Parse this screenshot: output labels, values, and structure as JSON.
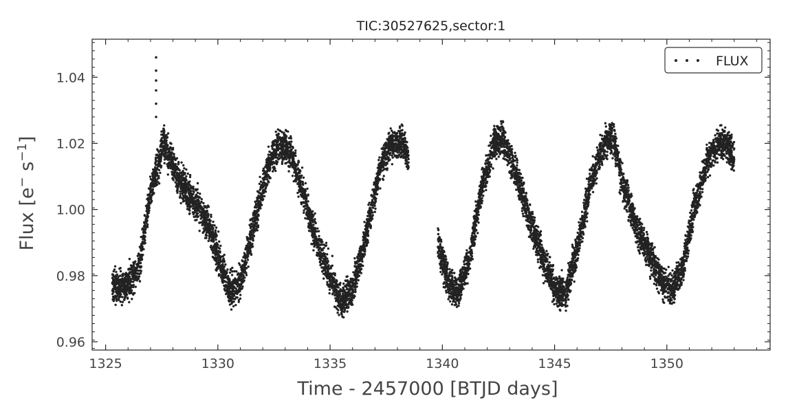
{
  "chart_data": {
    "type": "scatter",
    "title": "TIC:30527625,sector:1",
    "xlabel": "Time - 2457000 [BTJD days]",
    "ylabel_main": "Flux [e",
    "ylabel_sup1": "−",
    "ylabel_mid": " s",
    "ylabel_sup2": "−1",
    "ylabel_end": "]",
    "xlim": [
      1324.4,
      1354.6
    ],
    "ylim": [
      0.9575,
      1.0515
    ],
    "x_ticks": [
      1325,
      1330,
      1335,
      1340,
      1345,
      1350
    ],
    "y_ticks": [
      0.96,
      0.98,
      1.0,
      1.02,
      1.04
    ],
    "x_tick_labels": [
      "1325",
      "1330",
      "1335",
      "1340",
      "1345",
      "1350"
    ],
    "y_tick_labels": [
      "0.96",
      "0.98",
      "1.00",
      "1.02",
      "1.04"
    ],
    "legend": {
      "label": "FLUX",
      "position": "top-right"
    },
    "series": [
      {
        "name": "FLUX",
        "color": "#222222",
        "segments": [
          {
            "x": [
              1325.3,
              1325.6,
              1326.0,
              1326.5,
              1327.0,
              1327.6,
              1328.2,
              1328.9,
              1329.6,
              1330.3,
              1330.6,
              1331.0,
              1331.6,
              1332.2,
              1332.7,
              1333.2,
              1333.8,
              1334.4,
              1335.0,
              1335.5,
              1336.0,
              1336.6,
              1337.2,
              1337.7,
              1338.2,
              1338.5
            ],
            "y": [
              0.978,
              0.976,
              0.977,
              0.983,
              1.005,
              1.02,
              1.01,
              1.003,
              0.995,
              0.98,
              0.975,
              0.978,
              0.995,
              1.012,
              1.02,
              1.018,
              1.005,
              0.99,
              0.98,
              0.972,
              0.976,
              0.992,
              1.012,
              1.02,
              1.02,
              1.015
            ]
          },
          {
            "x": [
              1339.8,
              1340.3,
              1340.7,
              1341.2,
              1341.8,
              1342.3,
              1342.7,
              1343.3,
              1343.9,
              1344.5,
              1345.1,
              1345.5,
              1346.0,
              1346.6,
              1347.2,
              1347.6,
              1348.1,
              1348.7,
              1349.3,
              1349.8,
              1350.3,
              1350.7,
              1351.2,
              1351.8,
              1352.3,
              1352.7,
              1353.0
            ],
            "y": [
              0.99,
              0.977,
              0.975,
              0.985,
              1.008,
              1.02,
              1.022,
              1.01,
              0.997,
              0.985,
              0.975,
              0.975,
              0.988,
              1.008,
              1.02,
              1.022,
              1.006,
              0.994,
              0.985,
              0.978,
              0.976,
              0.982,
              1.0,
              1.015,
              1.02,
              1.02,
              1.015
            ]
          }
        ],
        "spikes": [
          {
            "x": 1327.25,
            "y": [
              1.028,
              1.032,
              1.036,
              1.039,
              1.042,
              1.046
            ]
          }
        ],
        "scatter_spread": 0.0045,
        "point_density_per_day": 330
      }
    ],
    "grid": false
  }
}
